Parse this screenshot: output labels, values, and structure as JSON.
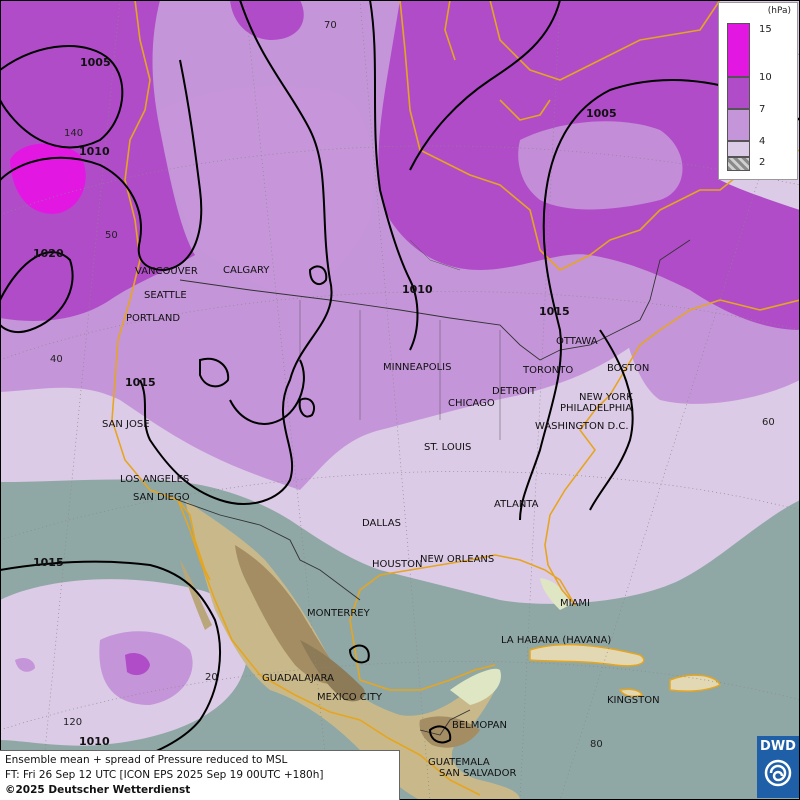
{
  "legend": {
    "unit": "(hPa)",
    "levels": [
      {
        "label": "15",
        "color": "#e218e2"
      },
      {
        "label": "10",
        "color": "#b04cc8"
      },
      {
        "label": "7",
        "color": "#c595d9"
      },
      {
        "label": "4",
        "color": "#dccbe6"
      },
      {
        "label": "2",
        "color": "#8a8a8a"
      }
    ]
  },
  "info": {
    "line1": "Ensemble mean + spread of Pressure reduced to MSL",
    "line2": "FT: Fri 26 Sep 12 UTC [ICON EPS 2025 Sep 19 00UTC +180h]",
    "copyright": "©2025 Deutscher Wetterdienst"
  },
  "logo": {
    "text": "DWD"
  },
  "cities": {
    "vancouver": "VANCOUVER",
    "calgary": "CALGARY",
    "seattle": "SEATTLE",
    "portland": "PORTLAND",
    "san_jose": "SAN JOSE",
    "los_angeles": "LOS ANGELES",
    "san_diego": "SAN DIEGO",
    "minneapolis": "MINNEAPOLIS",
    "chicago": "CHICAGO",
    "detroit": "DETROIT",
    "toronto": "TORONTO",
    "ottawa": "OTTAWA",
    "boston": "BOSTON",
    "new_york": "NEW YORK",
    "philadelphia": "PHILADELPHIA",
    "washington": "WASHINGTON D.C.",
    "st_louis": "ST. LOUIS",
    "atlanta": "ATLANTA",
    "dallas": "DALLAS",
    "houston": "HOUSTON",
    "new_orleans": "NEW ORLEANS",
    "miami": "MIAMI",
    "monterrey": "MONTERREY",
    "la_habana": "LA HABANA (HAVANA)",
    "guadalajara": "GUADALAJARA",
    "mexico_city": "MEXICO CITY",
    "belmopan": "BELMOPAN",
    "kingston": "KINGSTON",
    "guatemala": "GUATEMALA",
    "san_salvador": "SAN SALVADOR"
  },
  "isobars": {
    "a": "1005",
    "b": "1010",
    "c": "1020",
    "d": "1015",
    "e": "1015",
    "f": "1010",
    "g": "1010",
    "h": "1015",
    "i": "1005"
  },
  "graticule": {
    "lat70": "70",
    "lon140": "140",
    "lat50": "50",
    "lat40": "40",
    "lat20": "20",
    "lon120": "120",
    "lon60": "60",
    "lon80": "80"
  }
}
